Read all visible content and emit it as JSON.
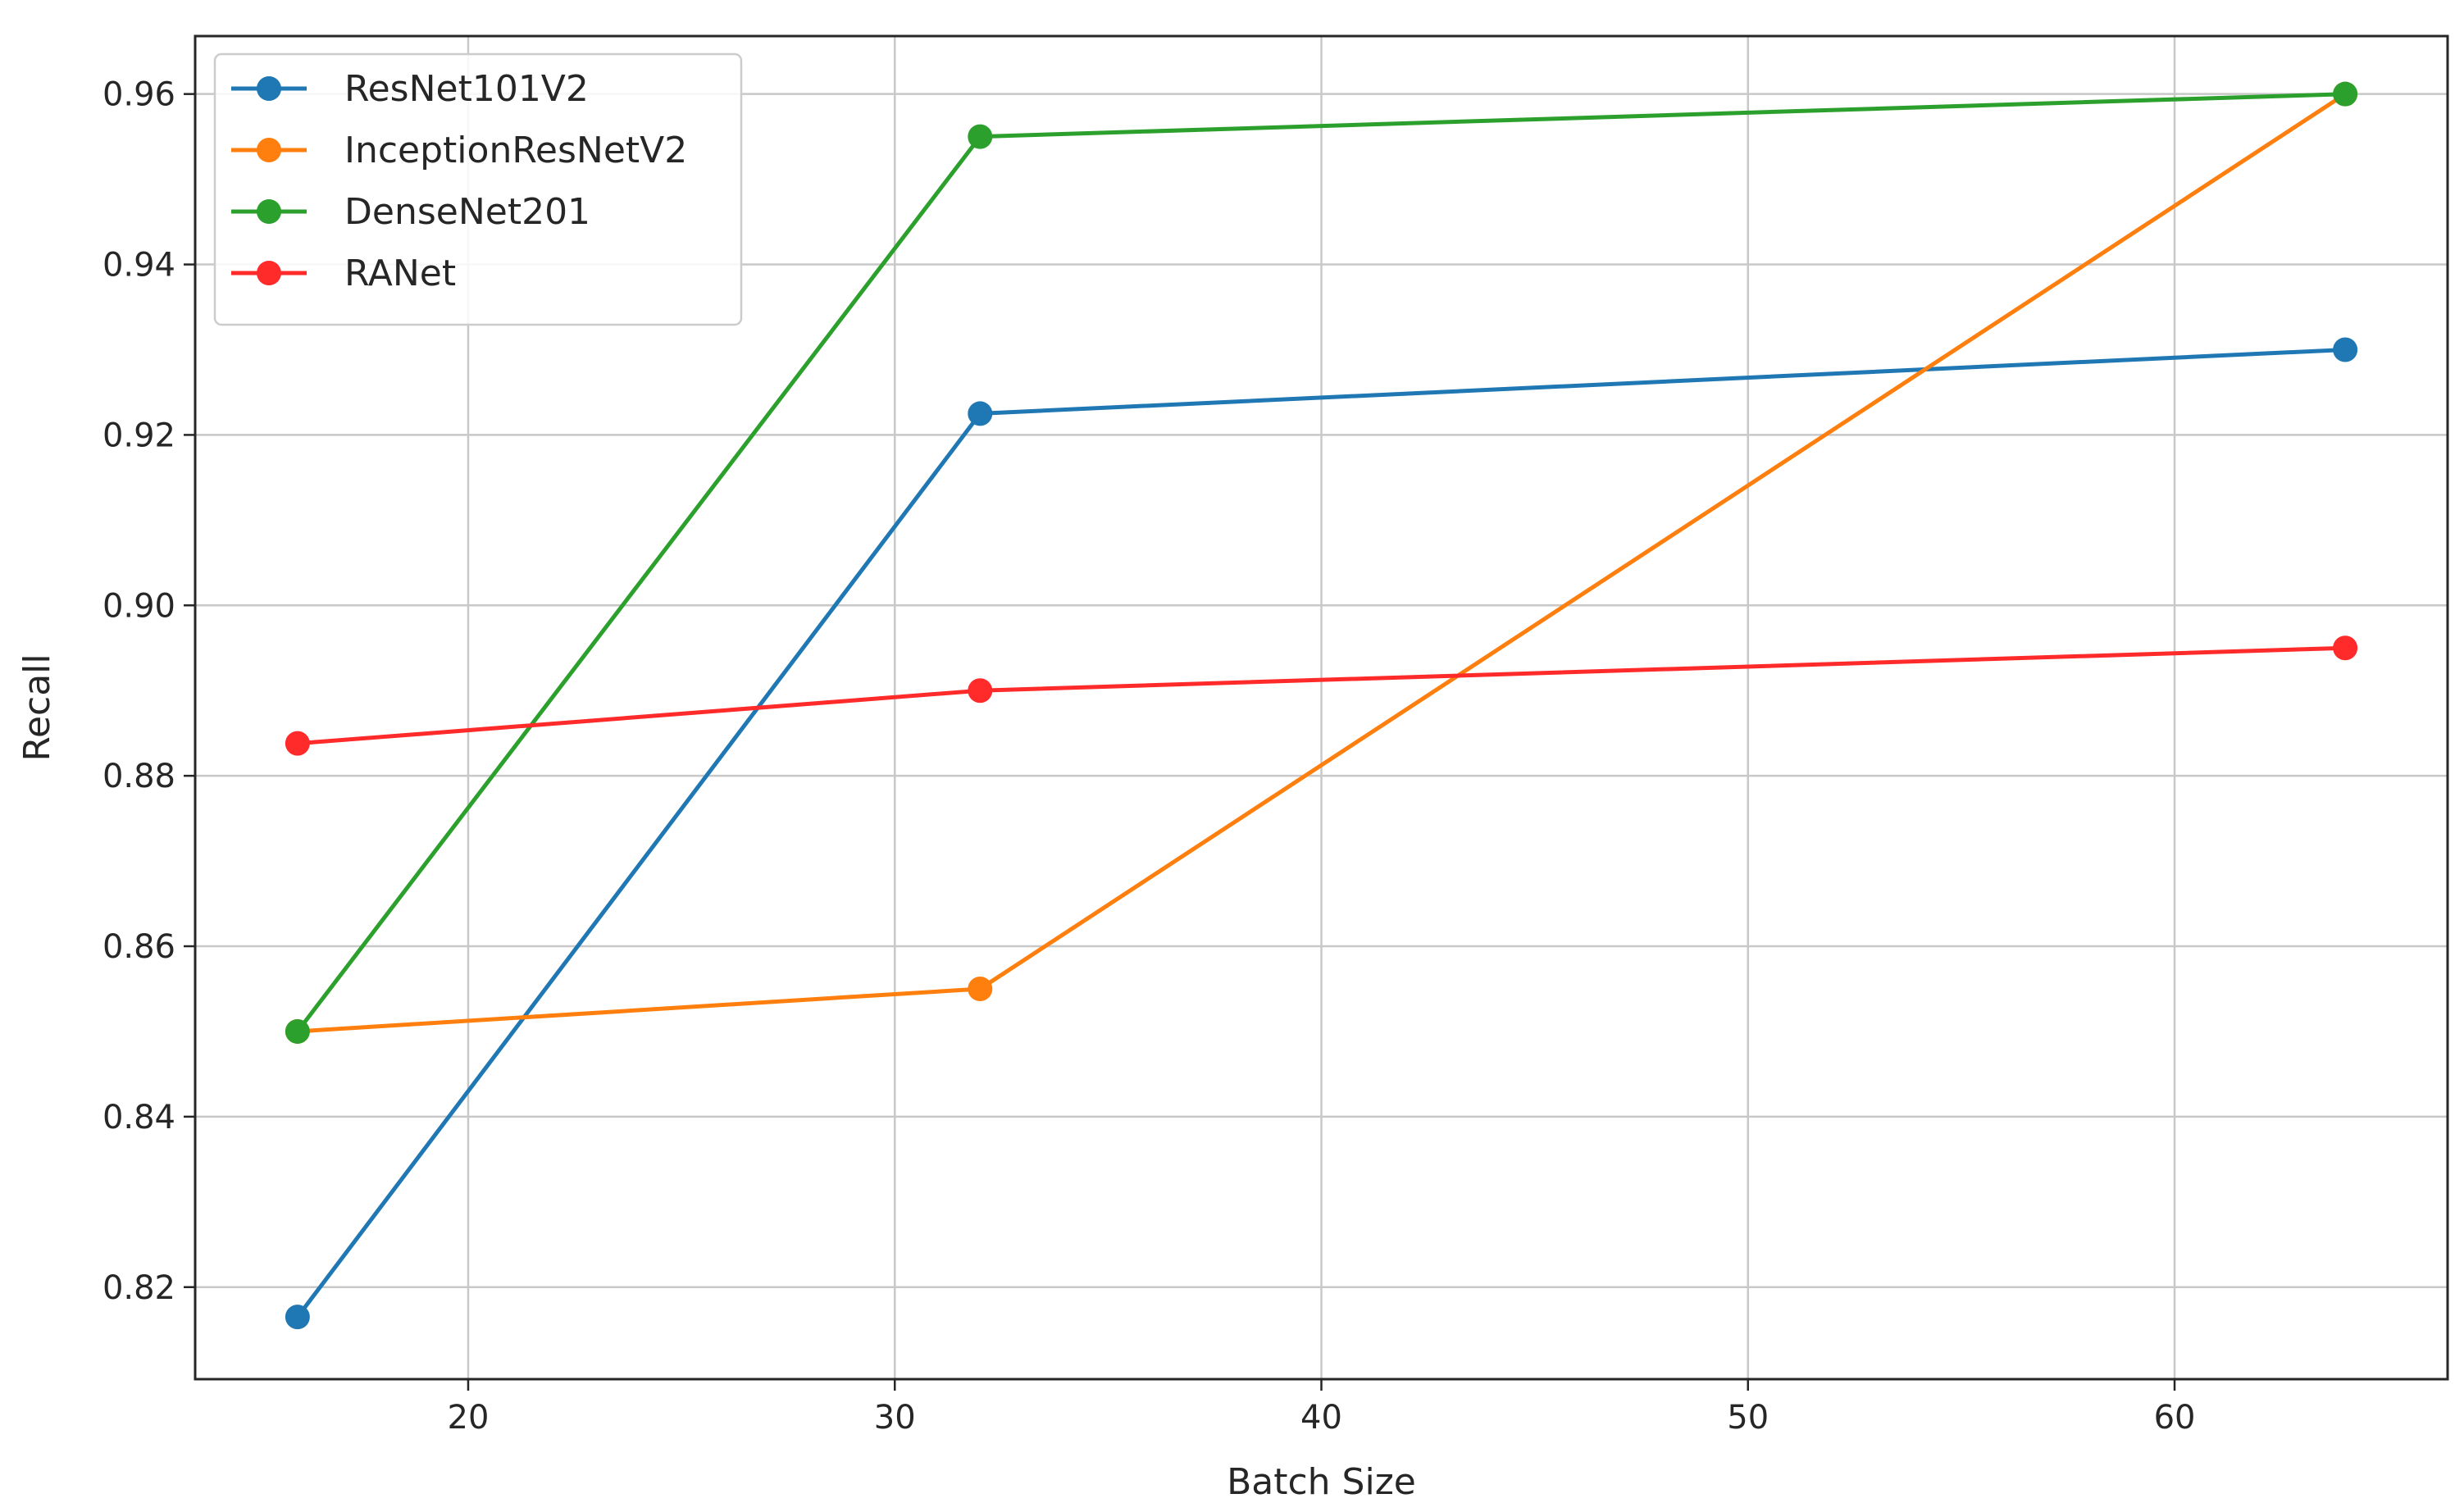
{
  "chart_data": {
    "type": "line",
    "title": "",
    "xlabel": "Batch Size",
    "ylabel": "Recall",
    "x": [
      16,
      32,
      64
    ],
    "xlim": [
      13.6,
      66.4
    ],
    "ylim": [
      0.8092,
      0.9668
    ],
    "xticks": [
      "20",
      "30",
      "40",
      "50",
      "60"
    ],
    "yticks": [
      "0.82",
      "0.84",
      "0.86",
      "0.88",
      "0.90",
      "0.92",
      "0.94",
      "0.96"
    ],
    "grid": true,
    "legend": "upper-left",
    "series": [
      {
        "name": "ResNet101V2",
        "color": "#1f77b4",
        "values": [
          0.8165,
          0.9225,
          0.93
        ]
      },
      {
        "name": "InceptionResNetV2",
        "color": "#ff7f0e",
        "values": [
          0.85,
          0.855,
          0.96
        ]
      },
      {
        "name": "DenseNet201",
        "color": "#2ca02c",
        "values": [
          0.85,
          0.955,
          0.96
        ]
      },
      {
        "name": "RANet",
        "color": "#ff2a2a",
        "values": [
          0.8838,
          0.89,
          0.895
        ]
      }
    ]
  }
}
